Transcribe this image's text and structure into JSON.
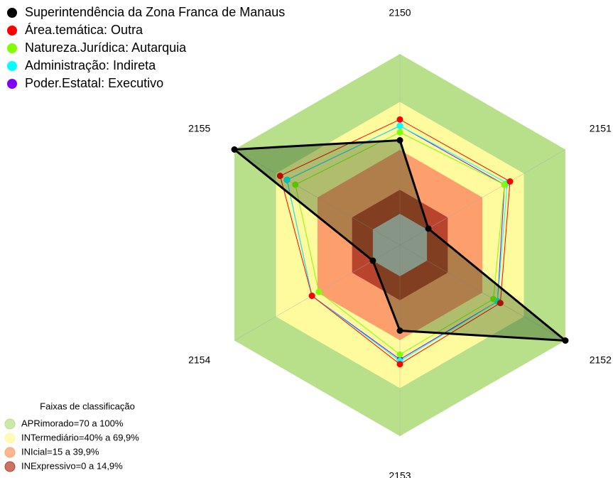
{
  "chart_data": {
    "type": "radar",
    "categories": [
      "2150",
      "2151",
      "2152",
      "2153",
      "2154",
      "2155"
    ],
    "rlim": [
      0,
      100
    ],
    "series": [
      {
        "name": "Superintendência da Zona Franca de Manaus",
        "color": "#000000",
        "values": [
          46,
          1,
          100,
          34,
          0,
          100
        ]
      },
      {
        "name": "Área.temática: Outra",
        "color": "#ff0000",
        "values": [
          59,
          60,
          53,
          55,
          44,
          67
        ]
      },
      {
        "name": "Natureza.Jurídica: Autarquia",
        "color": "#7fff00",
        "values": [
          51,
          56,
          48,
          49,
          39,
          56
        ]
      },
      {
        "name": "Administração: Indireta",
        "color": "#00ffff",
        "values": [
          55,
          58,
          51,
          53,
          44,
          62
        ]
      },
      {
        "name": "Poder.Estatal: Executivo",
        "color": "#8000ff",
        "values": [
          55,
          56,
          51,
          52,
          44,
          62
        ]
      }
    ],
    "bands_title": "Faixas de classificação",
    "bands": [
      {
        "label": "APRimorado=70 a 100%",
        "from": 70,
        "to": 100,
        "color": "#b8e08a"
      },
      {
        "label": "INTermediário=40% a 69,9%",
        "from": 40,
        "to": 70,
        "color": "#fefa9e"
      },
      {
        "label": "INIcial=15 a 39,9%",
        "from": 15,
        "to": 40,
        "color": "#fd9f6c"
      },
      {
        "label": "INExpressivo=0 a 14,9%",
        "from": 0,
        "to": 15,
        "color": "#b9442e"
      }
    ]
  }
}
